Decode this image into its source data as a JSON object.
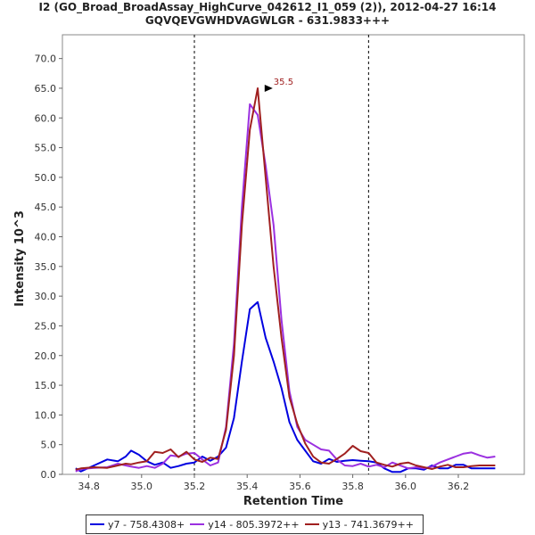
{
  "chart_data": {
    "type": "line",
    "title": "I2 (GO_Broad_BroadAssay_HighCurve_042612_I1_059 (2)), 2012-04-27 16:14",
    "subtitle": "GQVQEVGWHDVAGWLGR - 631.9833+++",
    "xlabel": "Retention Time",
    "ylabel": "Intensity 10^3",
    "xlim": [
      34.7,
      36.45
    ],
    "ylim": [
      0,
      74
    ],
    "xticks": [
      34.8,
      35.0,
      35.2,
      35.4,
      35.6,
      35.8,
      36.0,
      36.2
    ],
    "xtick_labels": [
      "34.8",
      "35.0",
      "35.2",
      "35.4",
      "35.6",
      "35.8",
      "36.0",
      "36.2"
    ],
    "yticks": [
      0,
      5,
      10,
      15,
      20,
      25,
      30,
      35,
      40,
      45,
      50,
      55,
      60,
      65,
      70
    ],
    "ytick_labels": [
      "0.0",
      "5.0",
      "10.0",
      "15.0",
      "20.0",
      "25.0",
      "30.0",
      "35.0",
      "40.0",
      "45.0",
      "50.0",
      "55.0",
      "60.0",
      "65.0",
      "70.0"
    ],
    "vlines": [
      35.2,
      35.86
    ],
    "x": [
      34.75,
      34.77,
      34.82,
      34.87,
      34.91,
      34.94,
      34.96,
      34.99,
      35.02,
      35.05,
      35.08,
      35.11,
      35.14,
      35.17,
      35.2,
      35.23,
      35.26,
      35.29,
      35.32,
      35.35,
      35.38,
      35.41,
      35.44,
      35.47,
      35.5,
      35.53,
      35.56,
      35.59,
      35.62,
      35.65,
      35.68,
      35.71,
      35.74,
      35.77,
      35.8,
      35.83,
      35.86,
      35.89,
      35.92,
      35.95,
      35.98,
      36.01,
      36.04,
      36.07,
      36.1,
      36.13,
      36.16,
      36.19,
      36.22,
      36.25,
      36.28,
      36.31,
      36.34
    ],
    "series": [
      {
        "name": "y7 - 758.4308+",
        "color": "#0000e0",
        "values": [
          1.0,
          0.5,
          1.5,
          2.5,
          2.2,
          3.0,
          4.0,
          3.3,
          2.2,
          1.6,
          2.0,
          1.1,
          1.4,
          1.8,
          2.0,
          3.0,
          2.3,
          3.0,
          4.5,
          9.5,
          19.0,
          27.8,
          29.0,
          23.0,
          19.0,
          14.5,
          8.8,
          5.8,
          4.0,
          2.2,
          1.8,
          2.6,
          2.1,
          2.3,
          2.4,
          2.3,
          2.2,
          2.0,
          1.0,
          0.4,
          0.4,
          1.0,
          1.0,
          0.8,
          1.5,
          1.0,
          1.0,
          1.6,
          1.6,
          1.0,
          1.0,
          1.0,
          1.0
        ]
      },
      {
        "name": "y14 - 805.3972++",
        "color": "#9b30e0",
        "values": [
          0.5,
          0.9,
          1.1,
          1.2,
          1.8,
          1.5,
          1.3,
          1.1,
          1.4,
          1.1,
          1.8,
          3.2,
          3.0,
          3.5,
          3.6,
          2.5,
          1.5,
          2.0,
          8.0,
          22.0,
          45.0,
          62.3,
          60.5,
          52.0,
          42.0,
          26.0,
          14.0,
          8.0,
          5.8,
          5.0,
          4.2,
          4.0,
          2.5,
          1.5,
          1.4,
          1.8,
          1.3,
          1.6,
          1.2,
          2.0,
          1.5,
          1.0,
          1.2,
          1.0,
          1.3,
          2.0,
          2.5,
          3.0,
          3.5,
          3.7,
          3.2,
          2.8,
          3.0
        ]
      },
      {
        "name": "y13 - 741.3679++",
        "color": "#a02020",
        "values": [
          0.8,
          1.0,
          1.2,
          1.1,
          1.5,
          1.8,
          1.7,
          2.0,
          2.2,
          3.8,
          3.6,
          4.2,
          2.9,
          3.8,
          2.5,
          2.1,
          2.8,
          2.6,
          7.5,
          20.0,
          42.0,
          58.0,
          65.0,
          50.0,
          35.0,
          23.0,
          13.0,
          8.5,
          5.2,
          3.0,
          2.0,
          1.8,
          2.6,
          3.5,
          4.8,
          3.9,
          3.6,
          2.0,
          1.6,
          1.3,
          1.8,
          2.0,
          1.5,
          1.2,
          0.9,
          1.3,
          1.6,
          1.2,
          1.2,
          1.4,
          1.5,
          1.5,
          1.5
        ]
      }
    ],
    "annotations": [
      {
        "text": "35.5",
        "x": 35.5,
        "y": 65.0,
        "color": "#a02020"
      }
    ],
    "legend": "bottom",
    "grid": false
  }
}
